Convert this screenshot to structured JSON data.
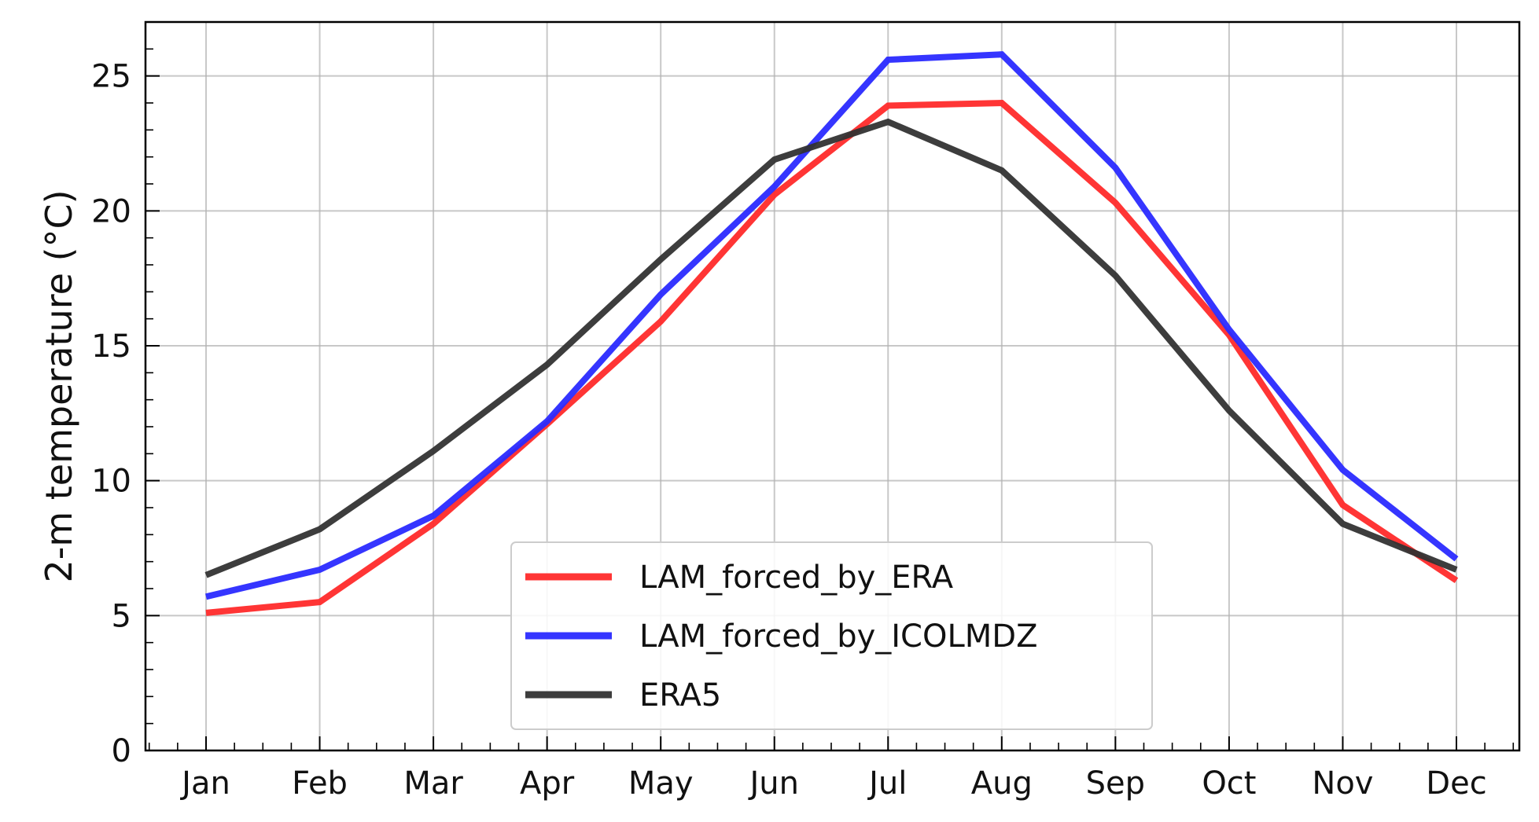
{
  "chart_data": {
    "type": "line",
    "categories": [
      "Jan",
      "Feb",
      "Mar",
      "Apr",
      "May",
      "Jun",
      "Jul",
      "Aug",
      "Sep",
      "Oct",
      "Nov",
      "Dec"
    ],
    "ylabel": "2-m temperature (°C)",
    "xlabel": "",
    "title": "",
    "ylim": [
      0,
      27
    ],
    "yticks": [
      0,
      5,
      10,
      15,
      20,
      25
    ],
    "grid": true,
    "legend_position": "bottom-center",
    "series": [
      {
        "name": "LAM_forced_by_ERA",
        "color": "#ff2a2a",
        "values": [
          5.1,
          5.5,
          8.4,
          12.1,
          15.9,
          20.6,
          23.9,
          24.0,
          20.3,
          15.4,
          9.1,
          6.3
        ]
      },
      {
        "name": "LAM_forced_by_ICOLMDZ",
        "color": "#2a2aff",
        "values": [
          5.7,
          6.7,
          8.7,
          12.2,
          16.9,
          20.9,
          25.6,
          25.8,
          21.6,
          15.6,
          10.4,
          7.1
        ]
      },
      {
        "name": "ERA5",
        "color": "#333333",
        "values": [
          6.5,
          8.2,
          11.1,
          14.3,
          18.2,
          21.9,
          23.3,
          21.5,
          17.6,
          12.6,
          8.4,
          6.7
        ]
      }
    ]
  }
}
